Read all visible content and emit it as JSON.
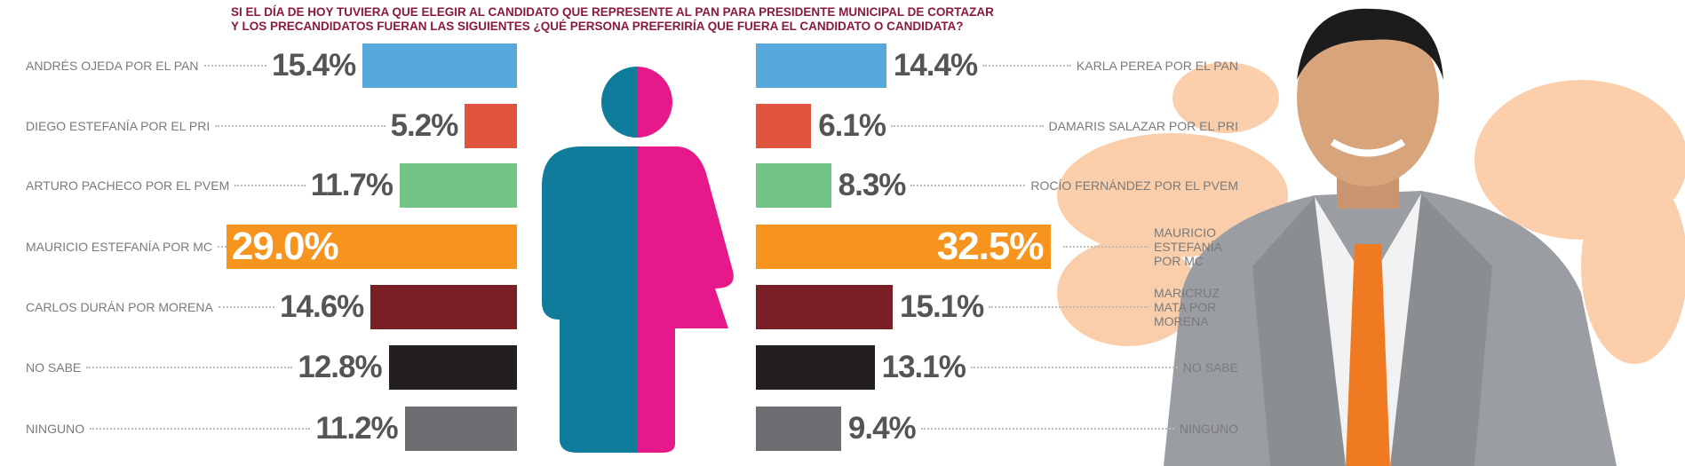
{
  "title": [
    "SI EL DÍA DE HOY TUVIERA QUE ELEGIR AL CANDIDATO QUE REPRESENTE AL PAN PARA PRESIDENTE MUNICIPAL DE CORTAZAR",
    "Y LOS PRECANDIDATOS FUERAN LAS SIGUIENTES ¿QUÉ PERSONA PREFERIRÍA QUE FUERA EL CANDIDATO O CANDIDATA?"
  ],
  "chart_data": [
    {
      "type": "bar",
      "categories": [
        "ANDRÉS OJEDA POR EL PAN",
        "DIEGO ESTEFANÍA POR EL PRI",
        "ARTURO PACHECO POR EL PVEM",
        "MAURICIO ESTEFANÍA POR MC",
        "CARLOS DURÁN POR MORENA",
        "NO SABE",
        "NINGUNO"
      ],
      "values": [
        15.4,
        5.2,
        11.7,
        29.0,
        14.6,
        12.8,
        11.2
      ],
      "value_labels": [
        "15.4%",
        "5.2%",
        "11.7%",
        "29.0%",
        "14.6%",
        "12.8%",
        "11.2%"
      ],
      "colors": [
        "#58a9db",
        "#e0533e",
        "#72c386",
        "#f7941d",
        "#7b1f27",
        "#231f20",
        "#6d6e71"
      ]
    },
    {
      "type": "bar",
      "categories": [
        "KARLA PEREA POR EL PAN",
        "DAMARIS SALAZAR POR EL PRI",
        "ROCÍO FERNÁNDEZ POR EL PVEM",
        "MAURICIO ESTEFANÍA POR MC",
        "MARICRUZ MATA POR MORENA",
        "NO SABE",
        "NINGUNO"
      ],
      "values": [
        14.4,
        6.1,
        8.3,
        32.5,
        15.1,
        13.1,
        9.4
      ],
      "value_labels": [
        "14.4%",
        "6.1%",
        "8.3%",
        "32.5%",
        "15.1%",
        "13.1%",
        "9.4%"
      ],
      "colors": [
        "#58a9db",
        "#e0533e",
        "#72c386",
        "#f7941d",
        "#7b1f27",
        "#231f20",
        "#6d6e71"
      ]
    }
  ]
}
